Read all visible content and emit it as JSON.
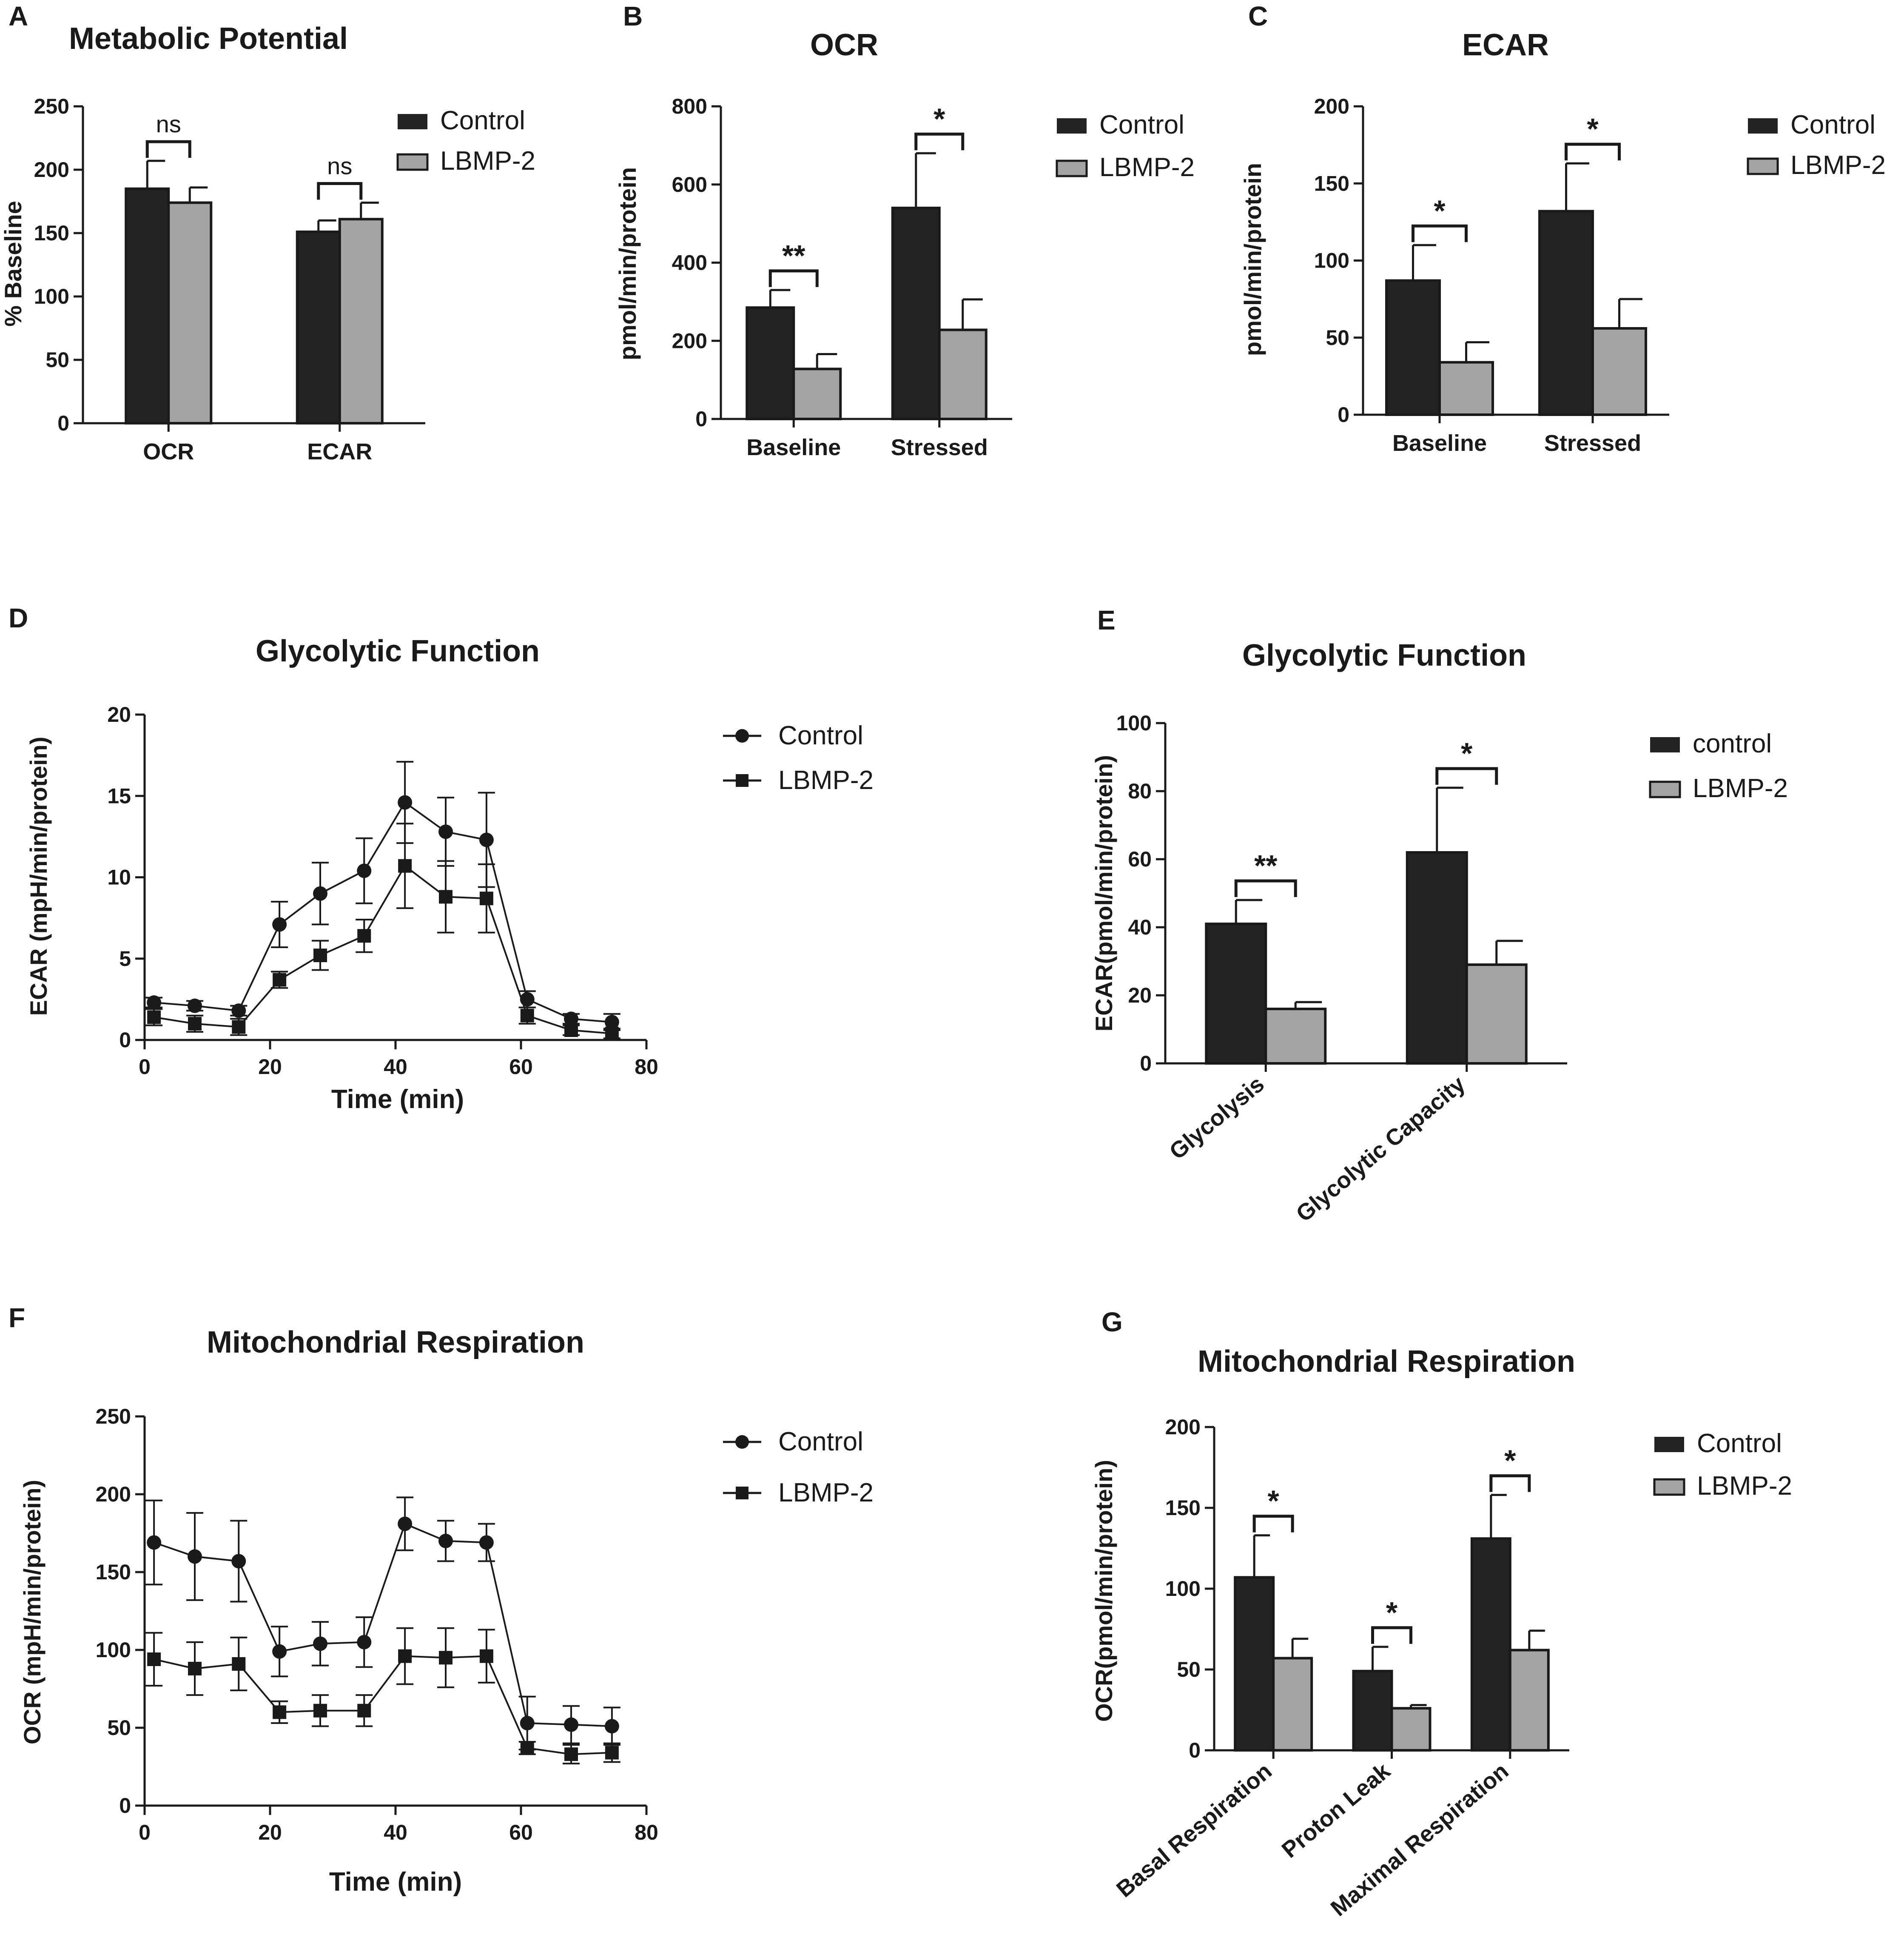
{
  "figure_panels": [
    "A",
    "B",
    "C",
    "D",
    "E",
    "F",
    "G"
  ],
  "colors": {
    "control": "#222222",
    "lbmp2": "#a4a4a4",
    "axis": "#1a1a1a"
  },
  "chart_data": [
    {
      "id": "A",
      "type": "bar",
      "title": "Metabolic Potential",
      "xlabel": "",
      "ylabel": "% Baseline",
      "categories": [
        "OCR",
        "ECAR"
      ],
      "ylim": [
        0,
        250
      ],
      "yticks": [
        0,
        50,
        100,
        150,
        200,
        250
      ],
      "series": [
        {
          "name": "Control",
          "values": [
            185,
            151
          ],
          "errors": [
            22,
            9
          ]
        },
        {
          "name": "LBMP-2",
          "values": [
            174,
            161
          ],
          "errors": [
            12,
            13
          ]
        }
      ],
      "annotations": [
        "ns",
        "ns"
      ],
      "legend": "top-right"
    },
    {
      "id": "B",
      "type": "bar",
      "title": "OCR",
      "xlabel": "",
      "ylabel": "pmol/min/protein",
      "categories": [
        "Baseline",
        "Stressed"
      ],
      "ylim": [
        0,
        800
      ],
      "yticks": [
        0,
        200,
        400,
        600,
        800
      ],
      "series": [
        {
          "name": "Control",
          "values": [
            285,
            540
          ],
          "errors": [
            45,
            140
          ]
        },
        {
          "name": "LBMP-2",
          "values": [
            128,
            228
          ],
          "errors": [
            38,
            78
          ]
        }
      ],
      "annotations": [
        "**",
        "*"
      ],
      "legend": "top-right"
    },
    {
      "id": "C",
      "type": "bar",
      "title": "ECAR",
      "xlabel": "",
      "ylabel": "pmol/min/protein",
      "categories": [
        "Baseline",
        "Stressed"
      ],
      "ylim": [
        0,
        200
      ],
      "yticks": [
        0,
        50,
        100,
        150,
        200
      ],
      "series": [
        {
          "name": "Control",
          "values": [
            87,
            132
          ],
          "errors": [
            23,
            31
          ]
        },
        {
          "name": "LBMP-2",
          "values": [
            34,
            56
          ],
          "errors": [
            13,
            19
          ]
        }
      ],
      "annotations": [
        "*",
        "*"
      ],
      "legend": "top-right"
    },
    {
      "id": "D",
      "type": "line",
      "title": "Glycolytic Function",
      "xlabel": "Time (min)",
      "ylabel": "ECAR (mpH/min/protein)",
      "xlim": [
        0,
        80
      ],
      "xticks": [
        0,
        20,
        40,
        60,
        80
      ],
      "ylim": [
        0,
        20
      ],
      "yticks": [
        0,
        5,
        10,
        15,
        20
      ],
      "x": [
        1.5,
        8,
        15,
        21.5,
        28,
        35,
        41.5,
        48,
        54.5,
        61,
        68,
        74.5
      ],
      "series": [
        {
          "name": "Control",
          "marker": "circle",
          "values": [
            2.3,
            2.1,
            1.8,
            7.1,
            9.0,
            10.4,
            14.6,
            12.8,
            12.3,
            2.5,
            1.3,
            1.1
          ],
          "errors": [
            0.3,
            0.3,
            0.3,
            1.4,
            1.9,
            2.0,
            2.5,
            2.1,
            2.9,
            0.5,
            0.3,
            0.5
          ]
        },
        {
          "name": "LBMP-2",
          "marker": "square",
          "values": [
            1.4,
            1.0,
            0.8,
            3.7,
            5.2,
            6.4,
            10.7,
            8.8,
            8.7,
            1.5,
            0.6,
            0.4
          ],
          "errors": [
            0.5,
            0.5,
            0.5,
            0.5,
            0.9,
            1.0,
            2.6,
            2.2,
            2.1,
            0.5,
            0.3,
            0.3
          ]
        }
      ],
      "legend": "top-right"
    },
    {
      "id": "E",
      "type": "bar",
      "title": "Glycolytic Function",
      "xlabel": "",
      "ylabel": "ECAR(pmol/min/protein)",
      "categories": [
        "Glycolysis",
        "Glycolytic Capacity"
      ],
      "ylim": [
        0,
        100
      ],
      "yticks": [
        0,
        20,
        40,
        60,
        80,
        100
      ],
      "series": [
        {
          "name": "control",
          "values": [
            41,
            62
          ],
          "errors": [
            7,
            19
          ]
        },
        {
          "name": "LBMP-2",
          "values": [
            16,
            29
          ],
          "errors": [
            2,
            7
          ]
        }
      ],
      "annotations": [
        "**",
        "*"
      ],
      "legend": "top-right"
    },
    {
      "id": "F",
      "type": "line",
      "title": "Mitochondrial Respiration",
      "xlabel": "Time (min)",
      "ylabel": "OCR (mpH/min/protein)",
      "xlim": [
        0,
        80
      ],
      "xticks": [
        0,
        20,
        40,
        60,
        80
      ],
      "ylim": [
        0,
        250
      ],
      "yticks": [
        0,
        50,
        100,
        150,
        200,
        250
      ],
      "x": [
        1.5,
        8,
        15,
        21.5,
        28,
        35,
        41.5,
        48,
        54.5,
        61,
        68,
        74.5
      ],
      "series": [
        {
          "name": "Control",
          "marker": "circle",
          "values": [
            169,
            160,
            157,
            99,
            104,
            105,
            181,
            170,
            169,
            53,
            52,
            51
          ],
          "errors": [
            27,
            28,
            26,
            16,
            14,
            16,
            17,
            13,
            12,
            17,
            12,
            12
          ]
        },
        {
          "name": "LBMP-2",
          "marker": "square",
          "values": [
            94,
            88,
            91,
            60,
            61,
            61,
            96,
            95,
            96,
            37,
            33,
            34
          ],
          "errors": [
            17,
            17,
            17,
            7,
            10,
            10,
            18,
            19,
            17,
            4,
            6,
            6
          ]
        }
      ],
      "legend": "top-right"
    },
    {
      "id": "G",
      "type": "bar",
      "title": "Mitochondrial Respiration",
      "xlabel": "",
      "ylabel": "OCR(pmol/min/protein)",
      "categories": [
        "Basal Respiration",
        "Proton Leak",
        "Maximal Respiration"
      ],
      "ylim": [
        0,
        200
      ],
      "yticks": [
        0,
        50,
        100,
        150,
        200
      ],
      "series": [
        {
          "name": "Control",
          "values": [
            107,
            49,
            131
          ],
          "errors": [
            26,
            15,
            27
          ]
        },
        {
          "name": "LBMP-2",
          "values": [
            57,
            26,
            62
          ],
          "errors": [
            12,
            2,
            12
          ]
        }
      ],
      "annotations": [
        "*",
        "*",
        "*"
      ],
      "legend": "top-right"
    }
  ]
}
